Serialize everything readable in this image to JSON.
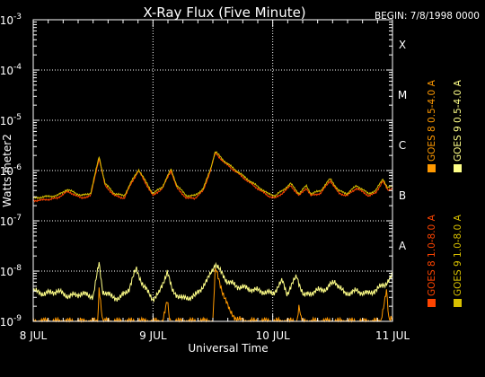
{
  "chart_data": {
    "type": "line",
    "title": "X-Ray Flux (Five Minute)",
    "begin_label": "BEGIN: 7/8/1998 0000",
    "xlabel": "Universal Time",
    "ylabel": "Watts meter2",
    "x_ticks": [
      "8 JUL",
      "9 JUL",
      "10 JUL",
      "11 JUL"
    ],
    "y_ticks": [
      {
        "base": "10",
        "exp": "-3"
      },
      {
        "base": "10",
        "exp": "-4"
      },
      {
        "base": "10",
        "exp": "-5"
      },
      {
        "base": "10",
        "exp": "-6"
      },
      {
        "base": "10",
        "exp": "-7"
      },
      {
        "base": "10",
        "exp": "-8"
      },
      {
        "base": "10",
        "exp": "-9"
      }
    ],
    "ylim_log10": [
      -9,
      -3
    ],
    "xlim_days": [
      0,
      3
    ],
    "y_scale": "log",
    "grid": true,
    "flare_classes": [
      "X",
      "M",
      "C",
      "B",
      "A"
    ],
    "legend_placement": "right",
    "series": [
      {
        "name": "GOES 8 1.0-8.0 A",
        "color": "#ff4400",
        "style": "long",
        "values": [
          [
            0,
            -6.6
          ],
          [
            0.1,
            -6.58
          ],
          [
            0.2,
            -6.55
          ],
          [
            0.28,
            -6.42
          ],
          [
            0.34,
            -6.47
          ],
          [
            0.4,
            -6.55
          ],
          [
            0.48,
            -6.5
          ],
          [
            0.55,
            -5.75
          ],
          [
            0.6,
            -6.3
          ],
          [
            0.68,
            -6.5
          ],
          [
            0.76,
            -6.55
          ],
          [
            0.82,
            -6.25
          ],
          [
            0.88,
            -6.0
          ],
          [
            0.95,
            -6.3
          ],
          [
            1.0,
            -6.5
          ],
          [
            1.08,
            -6.35
          ],
          [
            1.15,
            -6.0
          ],
          [
            1.2,
            -6.35
          ],
          [
            1.28,
            -6.55
          ],
          [
            1.35,
            -6.55
          ],
          [
            1.42,
            -6.4
          ],
          [
            1.48,
            -6.0
          ],
          [
            1.52,
            -5.65
          ],
          [
            1.6,
            -5.85
          ],
          [
            1.68,
            -6.0
          ],
          [
            1.76,
            -6.15
          ],
          [
            1.84,
            -6.3
          ],
          [
            1.9,
            -6.4
          ],
          [
            1.96,
            -6.5
          ],
          [
            2.02,
            -6.55
          ],
          [
            2.08,
            -6.45
          ],
          [
            2.15,
            -6.3
          ],
          [
            2.22,
            -6.5
          ],
          [
            2.28,
            -6.35
          ],
          [
            2.32,
            -6.5
          ],
          [
            2.4,
            -6.45
          ],
          [
            2.48,
            -6.2
          ],
          [
            2.55,
            -6.45
          ],
          [
            2.62,
            -6.5
          ],
          [
            2.7,
            -6.35
          ],
          [
            2.8,
            -6.5
          ],
          [
            2.86,
            -6.45
          ],
          [
            2.92,
            -6.2
          ],
          [
            2.96,
            -6.4
          ],
          [
            3.0,
            -6.35
          ]
        ]
      },
      {
        "name": "GOES 8 0.5-4.0 A",
        "color": "#ff9900",
        "style": "short",
        "values": [
          [
            0,
            -9.0
          ],
          [
            0.3,
            -9.0
          ],
          [
            0.54,
            -9.0
          ],
          [
            0.55,
            -8.3
          ],
          [
            0.58,
            -9.0
          ],
          [
            0.9,
            -9.0
          ],
          [
            1.08,
            -9.0
          ],
          [
            1.12,
            -8.6
          ],
          [
            1.14,
            -9.0
          ],
          [
            1.5,
            -9.0
          ],
          [
            1.52,
            -7.95
          ],
          [
            1.58,
            -8.4
          ],
          [
            1.64,
            -8.8
          ],
          [
            1.7,
            -8.95
          ],
          [
            1.76,
            -9.0
          ],
          [
            2.2,
            -9.0
          ],
          [
            2.22,
            -8.7
          ],
          [
            2.24,
            -9.0
          ],
          [
            2.9,
            -9.0
          ],
          [
            2.95,
            -8.4
          ],
          [
            2.97,
            -9.0
          ],
          [
            3.0,
            -8.9
          ]
        ]
      },
      {
        "name": "GOES 9 1.0-8.0 A",
        "color": "#d8c000",
        "style": "long",
        "values": [
          [
            0,
            -6.55
          ],
          [
            0.1,
            -6.52
          ],
          [
            0.2,
            -6.5
          ],
          [
            0.28,
            -6.38
          ],
          [
            0.34,
            -6.43
          ],
          [
            0.4,
            -6.5
          ],
          [
            0.48,
            -6.45
          ],
          [
            0.55,
            -5.72
          ],
          [
            0.6,
            -6.26
          ],
          [
            0.68,
            -6.46
          ],
          [
            0.76,
            -6.5
          ],
          [
            0.82,
            -6.22
          ],
          [
            0.88,
            -5.98
          ],
          [
            0.95,
            -6.26
          ],
          [
            1.0,
            -6.46
          ],
          [
            1.08,
            -6.32
          ],
          [
            1.15,
            -5.97
          ],
          [
            1.2,
            -6.3
          ],
          [
            1.28,
            -6.5
          ],
          [
            1.35,
            -6.5
          ],
          [
            1.42,
            -6.36
          ],
          [
            1.48,
            -5.97
          ],
          [
            1.52,
            -5.62
          ],
          [
            1.6,
            -5.82
          ],
          [
            1.68,
            -5.97
          ],
          [
            1.76,
            -6.12
          ],
          [
            1.84,
            -6.26
          ],
          [
            1.9,
            -6.36
          ],
          [
            1.96,
            -6.46
          ],
          [
            2.02,
            -6.5
          ],
          [
            2.08,
            -6.4
          ],
          [
            2.15,
            -6.26
          ],
          [
            2.22,
            -6.46
          ],
          [
            2.28,
            -6.3
          ],
          [
            2.32,
            -6.46
          ],
          [
            2.4,
            -6.4
          ],
          [
            2.48,
            -6.16
          ],
          [
            2.55,
            -6.4
          ],
          [
            2.62,
            -6.46
          ],
          [
            2.7,
            -6.3
          ],
          [
            2.8,
            -6.46
          ],
          [
            2.86,
            -6.4
          ],
          [
            2.92,
            -6.16
          ],
          [
            2.96,
            -6.35
          ],
          [
            3.0,
            -6.3
          ]
        ]
      },
      {
        "name": "GOES 9 0.5-4.0 A",
        "color": "#ffff88",
        "style": "short",
        "values": [
          [
            0,
            -8.4
          ],
          [
            0.1,
            -8.45
          ],
          [
            0.2,
            -8.4
          ],
          [
            0.3,
            -8.5
          ],
          [
            0.4,
            -8.45
          ],
          [
            0.5,
            -8.5
          ],
          [
            0.55,
            -7.85
          ],
          [
            0.58,
            -8.4
          ],
          [
            0.65,
            -8.5
          ],
          [
            0.72,
            -8.55
          ],
          [
            0.8,
            -8.35
          ],
          [
            0.86,
            -7.95
          ],
          [
            0.92,
            -8.3
          ],
          [
            1.0,
            -8.55
          ],
          [
            1.05,
            -8.45
          ],
          [
            1.12,
            -8.0
          ],
          [
            1.16,
            -8.4
          ],
          [
            1.25,
            -8.55
          ],
          [
            1.35,
            -8.5
          ],
          [
            1.45,
            -8.2
          ],
          [
            1.52,
            -7.85
          ],
          [
            1.56,
            -8.0
          ],
          [
            1.62,
            -8.2
          ],
          [
            1.7,
            -8.3
          ],
          [
            1.8,
            -8.35
          ],
          [
            1.9,
            -8.4
          ],
          [
            2.0,
            -8.45
          ],
          [
            2.08,
            -8.2
          ],
          [
            2.12,
            -8.45
          ],
          [
            2.2,
            -8.1
          ],
          [
            2.26,
            -8.5
          ],
          [
            2.35,
            -8.4
          ],
          [
            2.45,
            -8.35
          ],
          [
            2.52,
            -8.2
          ],
          [
            2.6,
            -8.45
          ],
          [
            2.7,
            -8.4
          ],
          [
            2.8,
            -8.45
          ],
          [
            2.88,
            -8.35
          ],
          [
            2.94,
            -8.25
          ],
          [
            3.0,
            -8.1
          ]
        ]
      }
    ]
  }
}
